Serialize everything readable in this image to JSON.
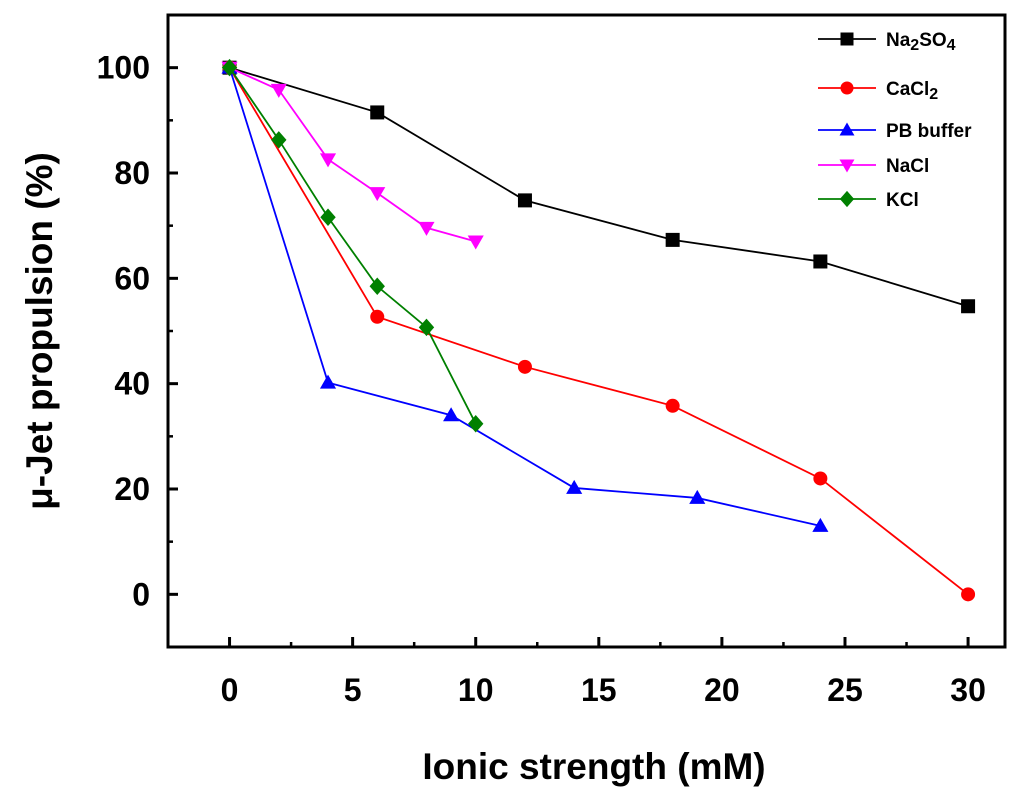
{
  "chart_data": {
    "type": "line",
    "xlabel": "Ionic strength (mM)",
    "ylabel": "μ-Jet propulsion (%)",
    "xlim": [
      -2.5,
      31.5
    ],
    "ylim": [
      -10,
      110
    ],
    "xticks": [
      0,
      5,
      10,
      15,
      20,
      25,
      30
    ],
    "yticks": [
      0,
      20,
      40,
      60,
      80,
      100
    ],
    "grid": false,
    "legend_position": "top-right",
    "series": [
      {
        "name": "Na2SO4",
        "label_parts": [
          [
            "Na",
            ""
          ],
          [
            "2",
            "sub"
          ],
          [
            "SO",
            ""
          ],
          [
            "4",
            "sub"
          ]
        ],
        "color": "#000000",
        "marker": "square",
        "x": [
          0,
          6,
          12,
          18,
          24,
          30
        ],
        "y": [
          100,
          91.5,
          74.8,
          67.3,
          63.2,
          54.7
        ]
      },
      {
        "name": "CaCl2",
        "label_parts": [
          [
            "CaCl",
            ""
          ],
          [
            "2",
            "sub"
          ]
        ],
        "color": "#ff0000",
        "marker": "circle",
        "x": [
          0,
          6,
          12,
          18,
          24,
          30
        ],
        "y": [
          100,
          52.7,
          43.2,
          35.8,
          22.0,
          0
        ]
      },
      {
        "name": "PB buffer",
        "label_parts": [
          [
            "PB buffer",
            ""
          ]
        ],
        "color": "#0000ff",
        "marker": "triangle-up",
        "x": [
          0,
          4,
          9,
          14,
          19,
          24
        ],
        "y": [
          100,
          40.2,
          34.0,
          20.2,
          18.3,
          13.0
        ]
      },
      {
        "name": "NaCl",
        "label_parts": [
          [
            "NaCl",
            ""
          ]
        ],
        "color": "#ff00ff",
        "marker": "triangle-down",
        "x": [
          0,
          2,
          4,
          6,
          8,
          10
        ],
        "y": [
          100,
          95.8,
          82.6,
          76.2,
          69.6,
          67.0
        ]
      },
      {
        "name": "KCl",
        "label_parts": [
          [
            "KCl",
            ""
          ]
        ],
        "color": "#008000",
        "marker": "diamond",
        "x": [
          0,
          2,
          4,
          6,
          8,
          10
        ],
        "y": [
          100,
          86.3,
          71.6,
          58.5,
          50.7,
          32.4
        ]
      }
    ]
  }
}
